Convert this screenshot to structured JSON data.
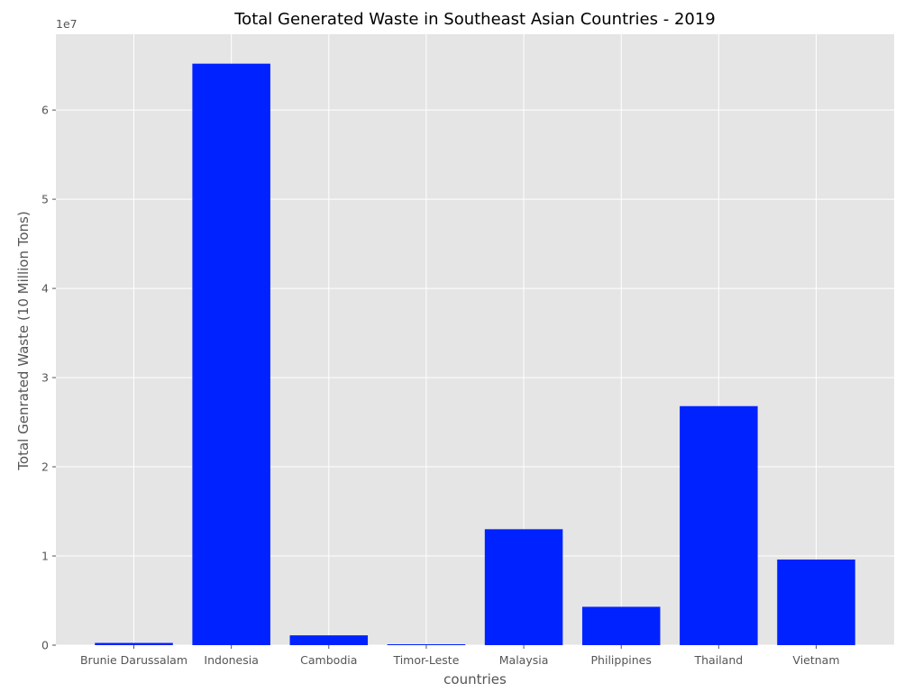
{
  "chart_data": {
    "type": "bar",
    "title": "Total Generated Waste in Southeast Asian Countries - 2019",
    "xlabel": "countries",
    "ylabel": "Total Genrated Waste (10 Million Tons)",
    "y_offset_label": "1e7",
    "y_scale_factor": 10000000,
    "categories": [
      "Brunie Darussalam",
      "Indonesia",
      "Cambodia",
      "Timor-Leste",
      "Malaysia",
      "Philippines",
      "Thailand",
      "Vietnam"
    ],
    "values": [
      250000,
      65200000,
      1100000,
      100000,
      13000000,
      4300000,
      26800000,
      9600000
    ],
    "y_ticks": [
      0,
      1,
      2,
      3,
      4,
      5,
      6
    ],
    "ylim": [
      0,
      68500000
    ],
    "grid": true,
    "bar_color": "#0022ff",
    "background_color": "#e5e5e5",
    "grid_color": "#ffffff"
  }
}
